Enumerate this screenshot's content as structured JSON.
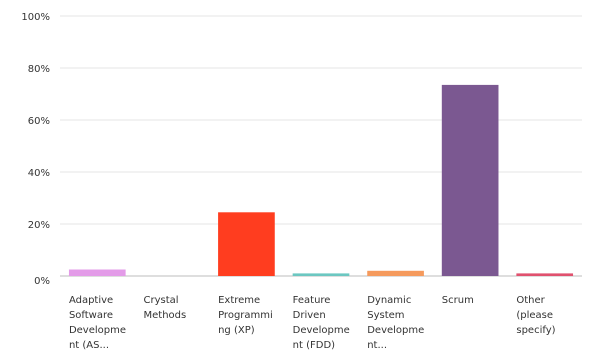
{
  "chart_data": {
    "type": "bar",
    "categories": [
      [
        "Adaptive",
        "Software",
        "Developme",
        "nt (AS..."
      ],
      [
        "Crystal",
        "Methods"
      ],
      [
        "Extreme",
        "Programmi",
        "ng (XP)"
      ],
      [
        "Feature",
        "Driven",
        "Developme",
        "nt (FDD)"
      ],
      [
        "Dynamic",
        "System",
        "Developme",
        "nt..."
      ],
      [
        "Scrum"
      ],
      [
        "Other",
        "(please",
        "specify)"
      ]
    ],
    "values": [
      2.5,
      0,
      24.5,
      1,
      2,
      73.5,
      1
    ],
    "colors": [
      "#e39be8",
      "#b8d96e",
      "#ff3d1f",
      "#6cc7c1",
      "#f59a5d",
      "#7b5891",
      "#e0516e"
    ],
    "ylim": [
      0,
      100
    ],
    "yticks": [
      0,
      20,
      40,
      60,
      80,
      100
    ],
    "ytick_labels": [
      "0%",
      "20%",
      "40%",
      "60%",
      "80%",
      "100%"
    ],
    "grid": true,
    "title": "",
    "xlabel": "",
    "ylabel": ""
  }
}
